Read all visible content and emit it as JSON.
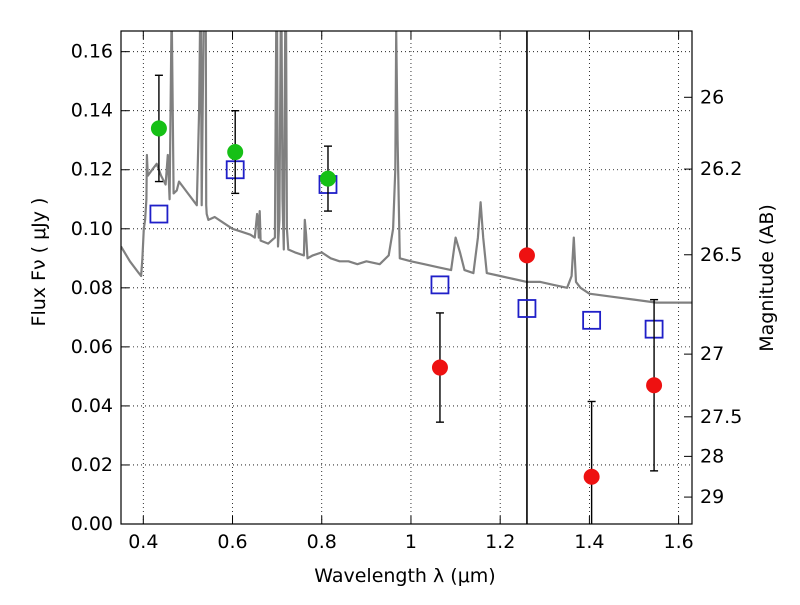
{
  "chart_data": {
    "type": "scatter",
    "title": "",
    "xlabel": "Wavelength  λ (μm)",
    "ylabel": "Flux  Fν  ( μJy )",
    "y2label": "Magnitude (AB)",
    "xlim": [
      0.35,
      1.63
    ],
    "ylim": [
      0.0,
      0.167
    ],
    "grid": true,
    "x_ticks": [
      0.4,
      0.6,
      0.8,
      1.0,
      1.2,
      1.4,
      1.6
    ],
    "x_tick_labels": [
      "0.4",
      "0.6",
      "0.8",
      "1",
      "1.2",
      "1.4",
      "1.6"
    ],
    "y_ticks": [
      0.0,
      0.02,
      0.04,
      0.06,
      0.08,
      0.1,
      0.12,
      0.14,
      0.16
    ],
    "y_tick_labels": [
      "0.00",
      "0.02",
      "0.04",
      "0.06",
      "0.08",
      "0.10",
      "0.12",
      "0.14",
      "0.16"
    ],
    "y2_ticks": [
      {
        "label": "26",
        "mag": 26.0
      },
      {
        "label": "26.2",
        "mag": 26.2
      },
      {
        "label": "26.5",
        "mag": 26.5
      },
      {
        "label": "27",
        "mag": 27.0
      },
      {
        "label": "27.5",
        "mag": 27.5
      },
      {
        "label": "28",
        "mag": 28.0
      },
      {
        "label": "29",
        "mag": 29.0
      }
    ],
    "vline_x": 1.26,
    "series": [
      {
        "kind": "line",
        "color": "#808080",
        "x": [
          0.35,
          0.37,
          0.39,
          0.395,
          0.398,
          0.401,
          0.404,
          0.407,
          0.408,
          0.41,
          0.42,
          0.43,
          0.44,
          0.45,
          0.455,
          0.459,
          0.463,
          0.464,
          0.468,
          0.475,
          0.48,
          0.49,
          0.5,
          0.51,
          0.52,
          0.525,
          0.527,
          0.529,
          0.531,
          0.535,
          0.538,
          0.54,
          0.541,
          0.542,
          0.546,
          0.56,
          0.58,
          0.6,
          0.62,
          0.64,
          0.65,
          0.655,
          0.657,
          0.659,
          0.661,
          0.663,
          0.68,
          0.695,
          0.698,
          0.7,
          0.702,
          0.705,
          0.708,
          0.71,
          0.712,
          0.715,
          0.718,
          0.72,
          0.722,
          0.725,
          0.74,
          0.76,
          0.762,
          0.765,
          0.768,
          0.78,
          0.8,
          0.82,
          0.84,
          0.86,
          0.88,
          0.9,
          0.93,
          0.95,
          0.96,
          0.965,
          0.967,
          0.97,
          0.975,
          1.0,
          1.03,
          1.06,
          1.09,
          1.1,
          1.11,
          1.12,
          1.14,
          1.15,
          1.156,
          1.162,
          1.17,
          1.2,
          1.23,
          1.26,
          1.29,
          1.32,
          1.35,
          1.36,
          1.365,
          1.37,
          1.38,
          1.4,
          1.45,
          1.5,
          1.55,
          1.6,
          1.63
        ],
        "y": [
          0.094,
          0.089,
          0.085,
          0.084,
          0.09,
          0.1,
          0.103,
          0.11,
          0.125,
          0.118,
          0.12,
          0.122,
          0.118,
          0.115,
          0.125,
          0.11,
          0.167,
          0.167,
          0.112,
          0.113,
          0.116,
          0.114,
          0.112,
          0.11,
          0.108,
          0.14,
          0.167,
          0.167,
          0.108,
          0.167,
          0.167,
          0.167,
          0.108,
          0.105,
          0.103,
          0.104,
          0.102,
          0.1,
          0.099,
          0.098,
          0.097,
          0.105,
          0.103,
          0.097,
          0.106,
          0.096,
          0.095,
          0.097,
          0.167,
          0.167,
          0.094,
          0.103,
          0.167,
          0.167,
          0.11,
          0.093,
          0.167,
          0.167,
          0.1,
          0.093,
          0.092,
          0.091,
          0.103,
          0.098,
          0.09,
          0.091,
          0.092,
          0.09,
          0.089,
          0.089,
          0.088,
          0.089,
          0.088,
          0.091,
          0.1,
          0.12,
          0.167,
          0.13,
          0.09,
          0.089,
          0.088,
          0.087,
          0.086,
          0.097,
          0.092,
          0.086,
          0.085,
          0.097,
          0.109,
          0.097,
          0.085,
          0.084,
          0.083,
          0.082,
          0.082,
          0.081,
          0.08,
          0.084,
          0.097,
          0.082,
          0.08,
          0.078,
          0.077,
          0.076,
          0.075,
          0.075,
          0.075
        ]
      },
      {
        "kind": "squares",
        "color": "#1f1fc8",
        "x": [
          0.435,
          0.606,
          0.814,
          1.065,
          1.26,
          1.405,
          1.545
        ],
        "y": [
          0.105,
          0.12,
          0.115,
          0.081,
          0.073,
          0.069,
          0.066
        ]
      },
      {
        "kind": "points",
        "color": "#16c016",
        "x": [
          0.435,
          0.606,
          0.814
        ],
        "y": [
          0.134,
          0.126,
          0.117
        ],
        "err": [
          0.018,
          0.014,
          0.011
        ]
      },
      {
        "kind": "points",
        "color": "#ee1111",
        "x": [
          1.065,
          1.26,
          1.405,
          1.545
        ],
        "y": [
          0.053,
          0.091,
          0.016,
          0.047
        ],
        "err": [
          0.0185,
          0,
          0.0255,
          0.029
        ]
      }
    ]
  }
}
